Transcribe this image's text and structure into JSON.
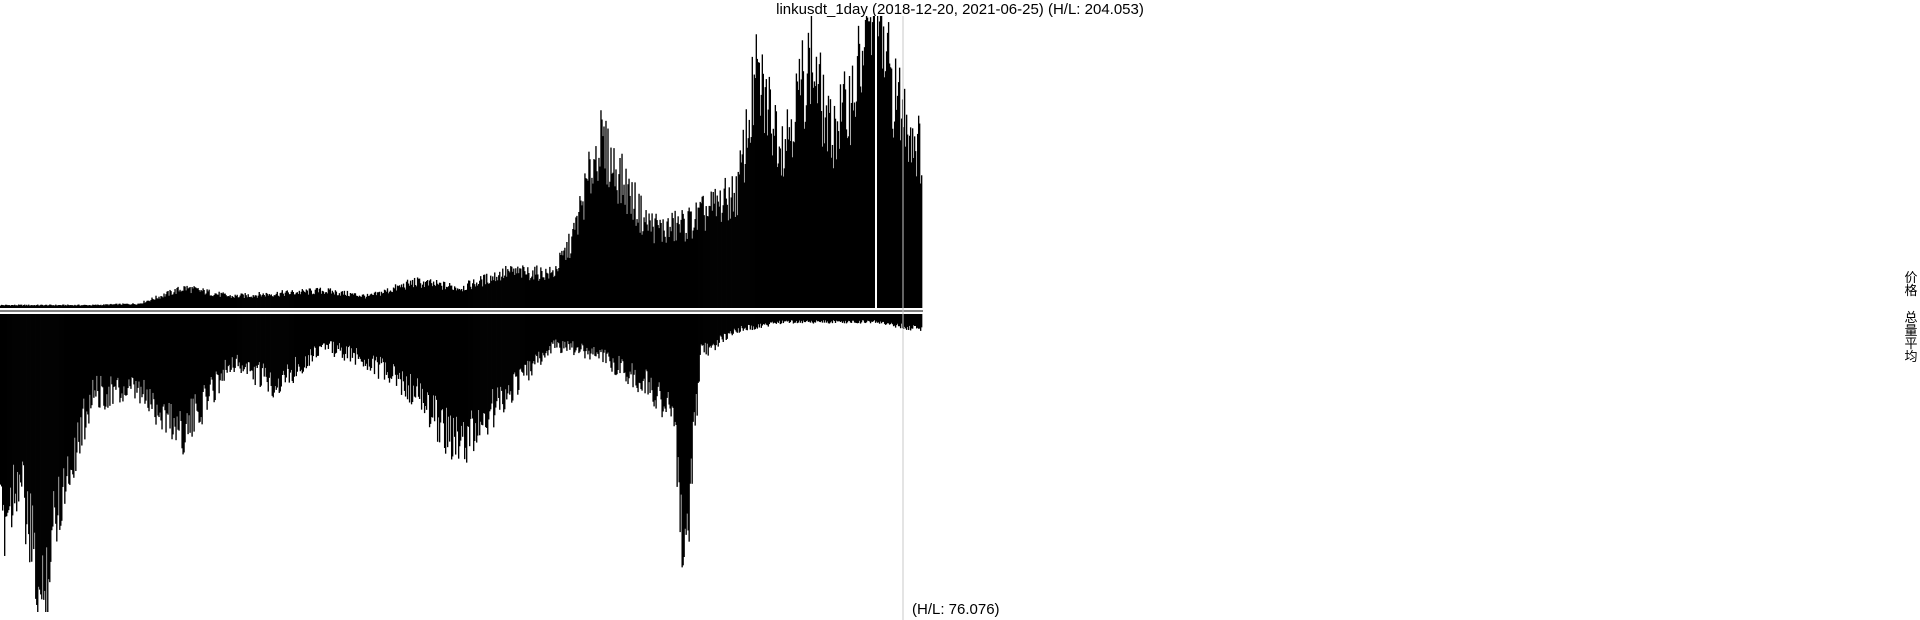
{
  "chart_data": {
    "type": "bar",
    "title": "linkusdt_1day (2018-12-20, 2021-06-25) (H/L: 204.053)",
    "date_range": [
      "2018-12-20",
      "2021-06-25"
    ],
    "price_hl": 204.053,
    "volume_hl_label": "(H/L: 76.076)",
    "volume_hl": 76.076,
    "legend": [
      "价格",
      "总量平均"
    ],
    "series": [
      {
        "name": "价格",
        "direction": "up",
        "color": "#000000",
        "approx_points": [
          [
            0,
            2
          ],
          [
            0.1,
            2
          ],
          [
            0.15,
            3
          ],
          [
            0.2,
            14
          ],
          [
            0.25,
            8
          ],
          [
            0.3,
            10
          ],
          [
            0.35,
            12
          ],
          [
            0.4,
            8
          ],
          [
            0.45,
            18
          ],
          [
            0.5,
            14
          ],
          [
            0.55,
            25
          ],
          [
            0.6,
            24
          ],
          [
            0.62,
            46
          ],
          [
            0.65,
            116
          ],
          [
            0.7,
            60
          ],
          [
            0.72,
            54
          ],
          [
            0.75,
            60
          ],
          [
            0.8,
            80
          ],
          [
            0.82,
            160
          ],
          [
            0.85,
            115
          ],
          [
            0.88,
            175
          ],
          [
            0.9,
            120
          ],
          [
            0.92,
            140
          ],
          [
            0.95,
            204.053
          ],
          [
            0.97,
            150
          ],
          [
            1.0,
            108
          ]
        ]
      },
      {
        "name": "总量平均",
        "direction": "down",
        "color": "#000000",
        "approx_points": [
          [
            0,
            55
          ],
          [
            0.02,
            40
          ],
          [
            0.045,
            76.076
          ],
          [
            0.06,
            50
          ],
          [
            0.1,
            20
          ],
          [
            0.15,
            20
          ],
          [
            0.2,
            30
          ],
          [
            0.25,
            12
          ],
          [
            0.3,
            18
          ],
          [
            0.35,
            8
          ],
          [
            0.4,
            12
          ],
          [
            0.45,
            20
          ],
          [
            0.5,
            34
          ],
          [
            0.55,
            20
          ],
          [
            0.6,
            8
          ],
          [
            0.65,
            10
          ],
          [
            0.7,
            18
          ],
          [
            0.73,
            24
          ],
          [
            0.742,
            66
          ],
          [
            0.76,
            10
          ],
          [
            0.8,
            4
          ],
          [
            0.85,
            2
          ],
          [
            0.9,
            2
          ],
          [
            0.95,
            2
          ],
          [
            1.0,
            4
          ]
        ]
      }
    ]
  }
}
